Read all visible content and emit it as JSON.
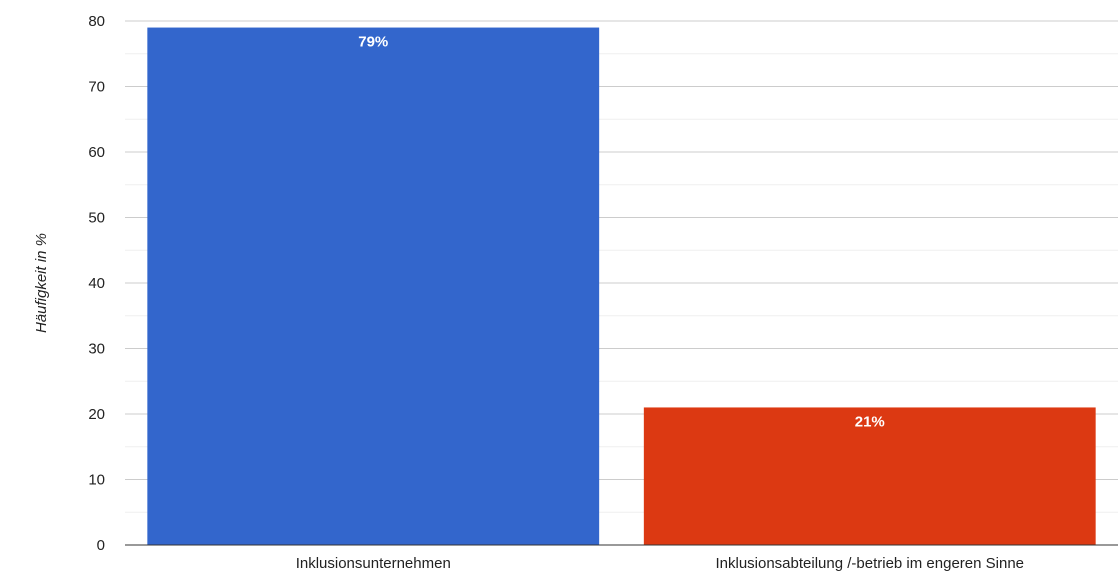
{
  "chart_data": {
    "type": "bar",
    "categories": [
      "Inklusionsunternehmen",
      "Inklusionsabteilung /-betrieb im engeren Sinne"
    ],
    "values": [
      79,
      21
    ],
    "data_labels": [
      "79%",
      "21%"
    ],
    "colors": [
      "#3366cc",
      "#dc3912"
    ],
    "title": "",
    "xlabel": "",
    "ylabel": "Häufigkeit in %",
    "ylim": [
      0,
      80
    ],
    "yticks": [
      0,
      10,
      20,
      30,
      40,
      50,
      60,
      70,
      80
    ],
    "grid": true,
    "minor_grid": true,
    "legend": "none",
    "label_color": "#ffffff"
  }
}
